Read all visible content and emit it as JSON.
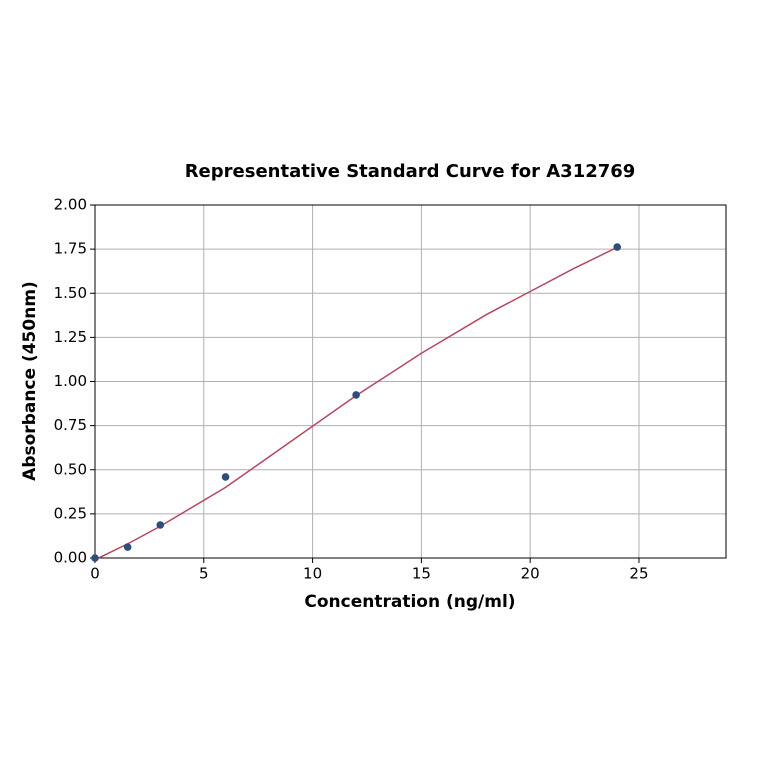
{
  "chart_data": {
    "type": "scatter",
    "title": "Representative Standard Curve for A312769",
    "x_label": "Concentration (ng/ml)",
    "y_label": "Absorbance (450nm)",
    "xlim": [
      0,
      29
    ],
    "xticks": [
      0,
      5,
      10,
      15,
      20,
      25
    ],
    "ylim": [
      0,
      2
    ],
    "yticks": [
      {
        "value": 0,
        "label": "0.00"
      },
      {
        "value": 0.25,
        "label": "0.25"
      },
      {
        "value": 0.5,
        "label": "0.50"
      },
      {
        "value": 0.75,
        "label": "0.75"
      },
      {
        "value": 1,
        "label": "1.00"
      },
      {
        "value": 1.25,
        "label": "1.25"
      },
      {
        "value": 1.5,
        "label": "1.50"
      },
      {
        "value": 1.75,
        "label": "1.75"
      },
      {
        "value": 2,
        "label": "2.00"
      }
    ],
    "grid": true,
    "series": [
      {
        "type": "line",
        "color": "#b5485f",
        "x": [
          0,
          1.5,
          3,
          6,
          9,
          12,
          15,
          18,
          20,
          22,
          24
        ],
        "values": [
          -0.01,
          0.08,
          0.18,
          0.4,
          0.66,
          0.92,
          1.16,
          1.38,
          1.51,
          1.64,
          1.76
        ]
      },
      {
        "type": "scatter",
        "color": "#2d4e7a",
        "x": [
          0,
          1.5,
          3,
          6,
          12,
          24
        ],
        "values": [
          0,
          0.062,
          0.187,
          0.459,
          0.924,
          1.762
        ]
      }
    ]
  }
}
